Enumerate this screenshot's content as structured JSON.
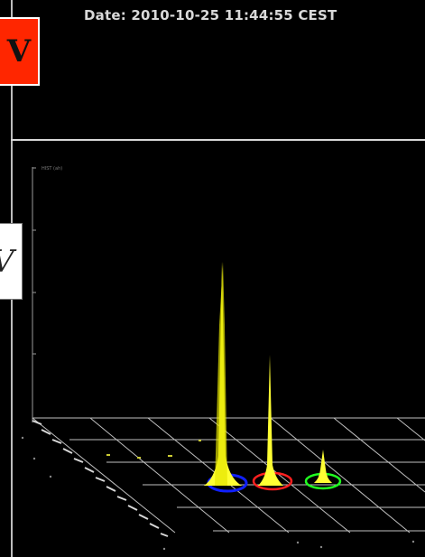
{
  "header": {
    "date_text": "Date: 2010-10-25 11:44:55 CEST"
  },
  "badges": {
    "top_letter": "V",
    "side_letter": "V"
  },
  "plot": {
    "axis_label": "HIST (ah)",
    "colors": {
      "background": "#000000",
      "peaks": "#ffff33",
      "ring_blue": "#1020ff",
      "ring_red": "#ff2020",
      "ring_green": "#20ff20",
      "grid": "#bfbfbf"
    }
  }
}
